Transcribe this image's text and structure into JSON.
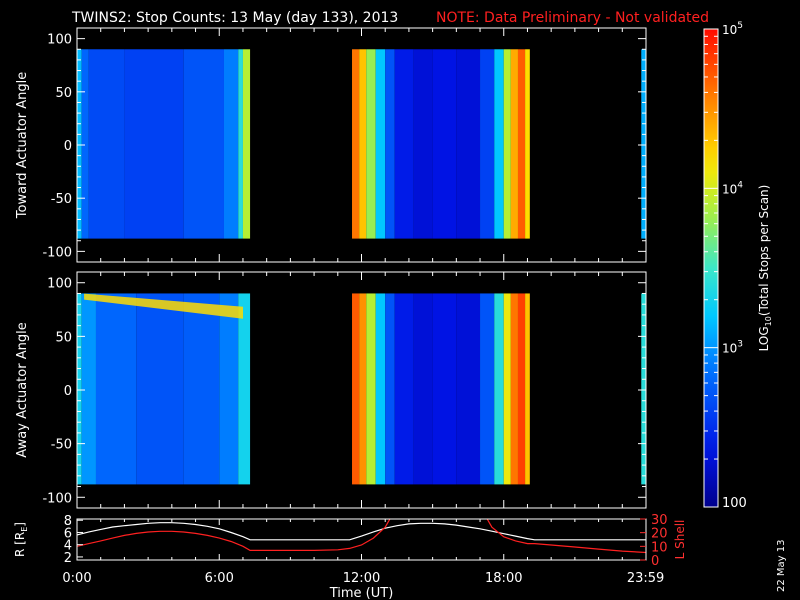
{
  "title": "TWINS2: Stop Counts: 13 May (day 133), 2013",
  "note": "NOTE: Data Preliminary - Not validated",
  "date_stamp": "22 May 13",
  "colors": {
    "background": "#000000",
    "axes": "#ffffff",
    "note": "#ff2020",
    "lshell": "#ff2020",
    "radius": "#ffffff"
  },
  "chart_data": [
    {
      "type": "heatmap",
      "ylabel": "Toward Actuator Angle",
      "ylim": [
        -110,
        110
      ],
      "yticks": [
        100,
        50,
        0,
        -50,
        -100
      ],
      "xlim": [
        0,
        24
      ],
      "data_angle_range": [
        -88,
        90
      ],
      "columns": [
        {
          "t0": 0.0,
          "t1": 0.2,
          "log": 3.15
        },
        {
          "t0": 0.2,
          "t1": 0.5,
          "log": 2.8
        },
        {
          "t0": 0.5,
          "t1": 2.0,
          "log": 2.65
        },
        {
          "t0": 2.0,
          "t1": 4.5,
          "log": 2.6
        },
        {
          "t0": 4.5,
          "t1": 6.2,
          "log": 2.7
        },
        {
          "t0": 6.2,
          "t1": 6.8,
          "log": 2.9
        },
        {
          "t0": 6.8,
          "t1": 7.0,
          "log": 3.4
        },
        {
          "t0": 7.0,
          "t1": 7.3,
          "log": 3.9
        },
        {
          "t0": 11.6,
          "t1": 11.9,
          "log": 4.6
        },
        {
          "t0": 11.9,
          "t1": 12.2,
          "log": 4.3
        },
        {
          "t0": 12.2,
          "t1": 12.6,
          "log": 3.8
        },
        {
          "t0": 12.6,
          "t1": 13.0,
          "log": 3.2
        },
        {
          "t0": 13.0,
          "t1": 13.4,
          "log": 2.7
        },
        {
          "t0": 13.4,
          "t1": 14.2,
          "log": 2.4
        },
        {
          "t0": 14.2,
          "t1": 15.0,
          "log": 2.3
        },
        {
          "t0": 15.0,
          "t1": 16.0,
          "log": 2.35
        },
        {
          "t0": 16.0,
          "t1": 17.0,
          "log": 2.3
        },
        {
          "t0": 17.0,
          "t1": 17.6,
          "log": 2.6
        },
        {
          "t0": 17.6,
          "t1": 18.0,
          "log": 3.2
        },
        {
          "t0": 18.0,
          "t1": 18.3,
          "log": 3.9
        },
        {
          "t0": 18.3,
          "t1": 18.6,
          "log": 4.4
        },
        {
          "t0": 18.6,
          "t1": 18.9,
          "log": 4.7
        },
        {
          "t0": 18.9,
          "t1": 19.1,
          "log": 4.2
        },
        {
          "t0": 23.8,
          "t1": 24.0,
          "log": 3.1
        }
      ]
    },
    {
      "type": "heatmap",
      "ylabel": "Away Actuator Angle",
      "ylim": [
        -110,
        110
      ],
      "yticks": [
        100,
        50,
        0,
        -50,
        -100
      ],
      "xlim": [
        0,
        24
      ],
      "data_angle_range": [
        -88,
        90
      ],
      "columns": [
        {
          "t0": 0.0,
          "t1": 0.2,
          "log": 3.3
        },
        {
          "t0": 0.2,
          "t1": 0.8,
          "log": 3.0
        },
        {
          "t0": 0.8,
          "t1": 2.5,
          "log": 2.8
        },
        {
          "t0": 2.5,
          "t1": 4.5,
          "log": 2.7
        },
        {
          "t0": 4.5,
          "t1": 6.0,
          "log": 2.75
        },
        {
          "t0": 6.0,
          "t1": 6.8,
          "log": 2.9
        },
        {
          "t0": 6.8,
          "t1": 7.3,
          "log": 3.3
        },
        {
          "t0": 11.6,
          "t1": 11.9,
          "log": 4.7
        },
        {
          "t0": 11.9,
          "t1": 12.2,
          "log": 4.5
        },
        {
          "t0": 12.2,
          "t1": 12.6,
          "log": 3.9
        },
        {
          "t0": 12.6,
          "t1": 13.0,
          "log": 3.2
        },
        {
          "t0": 13.0,
          "t1": 13.4,
          "log": 2.7
        },
        {
          "t0": 13.4,
          "t1": 14.2,
          "log": 2.4
        },
        {
          "t0": 14.2,
          "t1": 15.0,
          "log": 2.3
        },
        {
          "t0": 15.0,
          "t1": 16.0,
          "log": 2.35
        },
        {
          "t0": 16.0,
          "t1": 17.0,
          "log": 2.3
        },
        {
          "t0": 17.0,
          "t1": 17.6,
          "log": 2.7
        },
        {
          "t0": 17.6,
          "t1": 18.0,
          "log": 3.4
        },
        {
          "t0": 18.0,
          "t1": 18.3,
          "log": 4.1
        },
        {
          "t0": 18.3,
          "t1": 18.6,
          "log": 4.6
        },
        {
          "t0": 18.6,
          "t1": 18.9,
          "log": 4.8
        },
        {
          "t0": 18.9,
          "t1": 19.1,
          "log": 4.3
        },
        {
          "t0": 23.8,
          "t1": 24.0,
          "log": 3.4
        }
      ],
      "band": {
        "t0": 0.3,
        "t1": 7.0,
        "angle_start": 88,
        "angle_end": 72,
        "log": 4.2
      }
    },
    {
      "type": "line",
      "xlabel": "Time (UT)",
      "xlim": [
        0,
        24
      ],
      "xticks": [
        0,
        6,
        12,
        18,
        23.983
      ],
      "xticklabels": [
        "0:00",
        "6:00",
        "12:00",
        "18:00",
        "23:59"
      ],
      "left_axis": {
        "label": "R [RE]",
        "label_main": "R [R",
        "label_sub": "E",
        "label_close": "]",
        "ylim": [
          1.5,
          8.2
        ],
        "yticks": [
          2,
          4,
          6,
          8
        ]
      },
      "right_axis": {
        "label": "L Shell",
        "ylim": [
          0,
          30
        ],
        "yticks": [
          0,
          10,
          20,
          30
        ]
      },
      "series": [
        {
          "axis": "left",
          "color": "#ffffff",
          "x": [
            0,
            0.5,
            1,
            1.5,
            2,
            2.5,
            3,
            3.5,
            4,
            4.5,
            5,
            5.5,
            6,
            6.5,
            7,
            7.3,
            8,
            9,
            10,
            11,
            11.5,
            12,
            12.5,
            13,
            13.5,
            14,
            14.5,
            15,
            15.5,
            16,
            16.5,
            17,
            17.5,
            18,
            18.5,
            19,
            19.3,
            20,
            21,
            22,
            23,
            24
          ],
          "y": [
            5.6,
            6.1,
            6.5,
            6.9,
            7.1,
            7.3,
            7.5,
            7.6,
            7.6,
            7.5,
            7.3,
            7.0,
            6.6,
            6.0,
            5.3,
            4.8,
            4.8,
            4.8,
            4.8,
            4.8,
            4.8,
            5.4,
            6.1,
            6.7,
            7.1,
            7.4,
            7.5,
            7.5,
            7.4,
            7.2,
            6.9,
            6.6,
            6.2,
            5.8,
            5.4,
            5.0,
            4.8,
            4.8,
            4.8,
            4.8,
            4.8,
            4.8
          ]
        },
        {
          "axis": "right",
          "color": "#ff2020",
          "x": [
            0,
            0.5,
            1,
            1.5,
            2,
            2.5,
            3,
            3.5,
            4,
            4.5,
            5,
            5.5,
            6,
            6.5,
            7,
            7.3,
            8,
            9,
            10,
            11,
            11.5,
            12,
            12.5,
            13,
            13.2
          ],
          "y": [
            10,
            12,
            14,
            16,
            18,
            19.5,
            20.5,
            21,
            21,
            20.5,
            19.5,
            18,
            16,
            13.5,
            10,
            7,
            7,
            7,
            7,
            7.5,
            8.5,
            11,
            16,
            24,
            30
          ]
        },
        {
          "axis": "right",
          "color": "#ff2020",
          "x": [
            17.3,
            17.5,
            18,
            18.5,
            19,
            19.3,
            20,
            21,
            22,
            23,
            24
          ],
          "y": [
            30,
            24,
            17,
            14,
            12,
            12,
            11,
            9.5,
            8,
            6.5,
            5.5
          ]
        }
      ]
    }
  ],
  "colorbar": {
    "label_main": "LOG",
    "label_sub": "10",
    "label_rest": "(Total Stops per Scan)",
    "log_min": 2,
    "log_max": 5,
    "ticks": [
      {
        "log": 5,
        "base": "10",
        "exp": "5"
      },
      {
        "log": 4,
        "base": "10",
        "exp": "4"
      },
      {
        "log": 3,
        "base": "10",
        "exp": "3"
      },
      {
        "log": 2,
        "base": "100",
        "exp": ""
      }
    ]
  }
}
